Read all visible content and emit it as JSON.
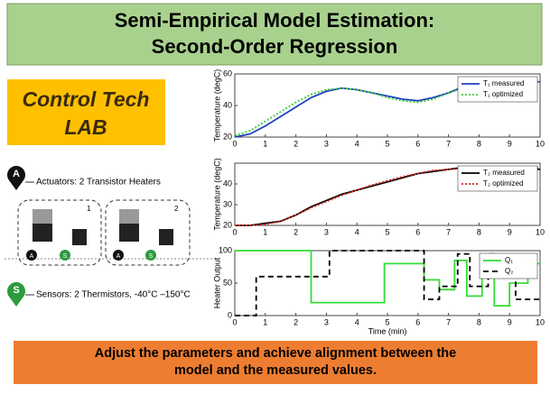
{
  "header": {
    "title_line1": "Semi-Empirical Model Estimation:",
    "title_line2": "Second-Order Regression"
  },
  "logo": {
    "line1": "Control Tech",
    "line2": "LAB"
  },
  "diagram": {
    "actuators_label": "Actuators: 2 Transistor Heaters",
    "sensors_label": "Sensors: 2 Thermistors, -40°C –150°C",
    "box_labels": [
      "1",
      "2"
    ],
    "markers": [
      "A",
      "S"
    ]
  },
  "banner": {
    "line1": "Adjust the parameters and achieve alignment between the",
    "line2": "model and the measured values."
  },
  "chart_data": [
    {
      "type": "line",
      "ylabel": "Temperature (degC)",
      "xlim": [
        0,
        10
      ],
      "xticks": [
        0,
        1,
        2,
        3,
        4,
        5,
        6,
        7,
        8,
        9,
        10
      ],
      "ylim": [
        20,
        60
      ],
      "yticks": [
        20,
        40,
        60
      ],
      "legend": "upper right",
      "x": [
        0,
        0.5,
        1,
        1.5,
        2,
        2.5,
        3,
        3.5,
        4,
        4.5,
        5,
        5.5,
        6,
        6.5,
        7,
        7.5,
        8,
        8.5,
        9,
        9.5,
        10
      ],
      "series": [
        {
          "name": "T₁ measured",
          "color": "#1f3fbf",
          "dash": "solid",
          "values": [
            20,
            22,
            27,
            33,
            39,
            45,
            49,
            51,
            50,
            48,
            46,
            44,
            43,
            45,
            48,
            52,
            54,
            55,
            55,
            55,
            55
          ]
        },
        {
          "name": "T₁ optimized",
          "color": "#33cc33",
          "dash": "dotted",
          "values": [
            21,
            24,
            30,
            36,
            42,
            47,
            50,
            51,
            50,
            48,
            45,
            43,
            42,
            44,
            48,
            51,
            54,
            55,
            55,
            55,
            55
          ]
        }
      ]
    },
    {
      "type": "line",
      "ylabel": "Temperature (degC)",
      "xlim": [
        0,
        10
      ],
      "xticks": [
        0,
        1,
        2,
        3,
        4,
        5,
        6,
        7,
        8,
        9,
        10
      ],
      "ylim": [
        20,
        50
      ],
      "yticks": [
        20,
        30,
        40
      ],
      "legend": "upper right",
      "x": [
        0,
        0.5,
        1,
        1.5,
        2,
        2.5,
        3,
        3.5,
        4,
        4.5,
        5,
        5.5,
        6,
        6.5,
        7,
        7.5,
        8,
        8.5,
        9,
        9.5,
        10
      ],
      "series": [
        {
          "name": "T₂ measured",
          "color": "#000000",
          "dash": "solid",
          "values": [
            20,
            20,
            21,
            22,
            25,
            29,
            32,
            35,
            37,
            39,
            41,
            43,
            45,
            46,
            47,
            48,
            48,
            48,
            48,
            48,
            47
          ]
        },
        {
          "name": "T₂ optimized",
          "color": "#dd2222",
          "dash": "dotted",
          "values": [
            20,
            20,
            20.5,
            22,
            25,
            28.5,
            31.5,
            34.5,
            37,
            39.5,
            41.5,
            43.5,
            45,
            46.5,
            47,
            47.5,
            48,
            48,
            48,
            48,
            48
          ]
        }
      ]
    },
    {
      "type": "line",
      "ylabel": "Heater Output",
      "xlabel": "Time (min)",
      "xlim": [
        0,
        10
      ],
      "xticks": [
        0,
        1,
        2,
        3,
        4,
        5,
        6,
        7,
        8,
        9,
        10
      ],
      "ylim": [
        0,
        100
      ],
      "yticks": [
        0,
        50,
        100
      ],
      "legend": "upper right",
      "series": [
        {
          "name": "Q₁",
          "color": "#33dd33",
          "dash": "solid",
          "x": [
            0,
            2.5,
            2.5,
            4.9,
            4.9,
            6.2,
            6.2,
            6.7,
            6.7,
            7.2,
            7.2,
            7.6,
            7.6,
            8.1,
            8.1,
            8.5,
            8.5,
            9.0,
            9.0,
            9.6,
            9.6,
            10
          ],
          "values": [
            100,
            100,
            20,
            20,
            80,
            80,
            55,
            55,
            40,
            40,
            85,
            85,
            30,
            30,
            70,
            70,
            15,
            15,
            50,
            50,
            80,
            80
          ]
        },
        {
          "name": "Q₂",
          "color": "#000000",
          "dash": "dashed",
          "x": [
            0,
            0.7,
            0.7,
            3.1,
            3.1,
            6.2,
            6.2,
            6.7,
            6.7,
            7.3,
            7.3,
            7.7,
            7.7,
            8.3,
            8.3,
            8.6,
            8.6,
            9.2,
            9.2,
            10
          ],
          "values": [
            0,
            0,
            60,
            60,
            100,
            100,
            25,
            25,
            45,
            45,
            95,
            95,
            45,
            45,
            95,
            95,
            60,
            60,
            25,
            25
          ]
        }
      ]
    }
  ]
}
